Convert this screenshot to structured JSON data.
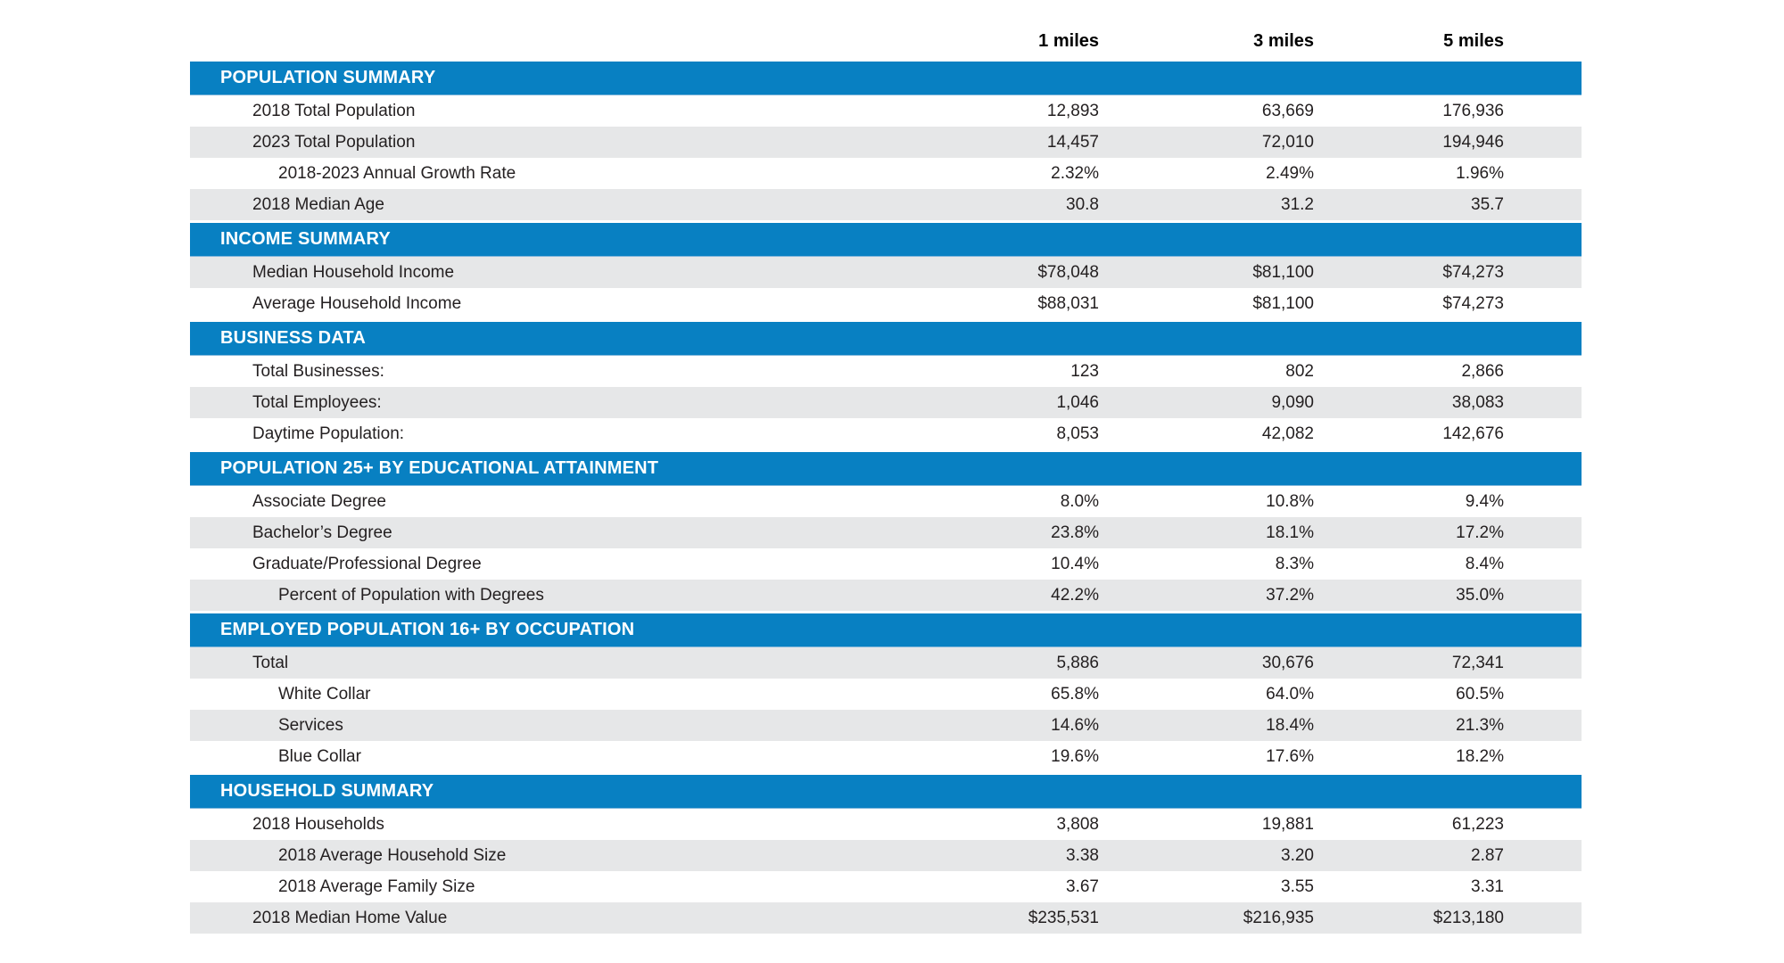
{
  "columns": [
    "1 miles",
    "3 miles",
    "5 miles"
  ],
  "colors": {
    "section_bar_bg": "#0880c2",
    "section_bar_text": "#ffffff",
    "row_alt_bg": "#e6e7e8",
    "body_text": "#231f20"
  },
  "sections": [
    {
      "title": "POPULATION SUMMARY",
      "rows": [
        {
          "label": "2018 Total Population",
          "indent": 1,
          "shaded": false,
          "values": [
            "12,893",
            "63,669",
            "176,936"
          ]
        },
        {
          "label": "2023 Total Population",
          "indent": 1,
          "shaded": true,
          "values": [
            "14,457",
            "72,010",
            "194,946"
          ]
        },
        {
          "label": "2018-2023 Annual Growth Rate",
          "indent": 2,
          "shaded": false,
          "values": [
            "2.32%",
            "2.49%",
            "1.96%"
          ]
        },
        {
          "label": "2018 Median Age",
          "indent": 1,
          "shaded": true,
          "values": [
            "30.8",
            "31.2",
            "35.7"
          ]
        }
      ]
    },
    {
      "title": "INCOME SUMMARY",
      "rows": [
        {
          "label": "Median Household Income",
          "indent": 1,
          "shaded": true,
          "values": [
            "$78,048",
            "$81,100",
            "$74,273"
          ]
        },
        {
          "label": "Average Household Income",
          "indent": 1,
          "shaded": false,
          "values": [
            "$88,031",
            "$81,100",
            "$74,273"
          ]
        }
      ]
    },
    {
      "title": "BUSINESS DATA",
      "rows": [
        {
          "label": "Total Businesses:",
          "indent": 1,
          "shaded": false,
          "values": [
            "123",
            "802",
            "2,866"
          ]
        },
        {
          "label": "Total Employees:",
          "indent": 1,
          "shaded": true,
          "values": [
            "1,046",
            "9,090",
            "38,083"
          ]
        },
        {
          "label": "Daytime Population:",
          "indent": 1,
          "shaded": false,
          "values": [
            "8,053",
            "42,082",
            "142,676"
          ]
        }
      ]
    },
    {
      "title": "POPULATION 25+ BY EDUCATIONAL ATTAINMENT",
      "rows": [
        {
          "label": "Associate Degree",
          "indent": 1,
          "shaded": false,
          "values": [
            "8.0%",
            "10.8%",
            "9.4%"
          ]
        },
        {
          "label": "Bachelor’s Degree",
          "indent": 1,
          "shaded": true,
          "values": [
            "23.8%",
            "18.1%",
            "17.2%"
          ]
        },
        {
          "label": "Graduate/Professional Degree",
          "indent": 1,
          "shaded": false,
          "values": [
            "10.4%",
            "8.3%",
            "8.4%"
          ]
        },
        {
          "label": "Percent of Population with Degrees",
          "indent": 2,
          "shaded": true,
          "values": [
            "42.2%",
            "37.2%",
            "35.0%"
          ]
        }
      ]
    },
    {
      "title": "EMPLOYED POPULATION 16+ BY OCCUPATION",
      "rows": [
        {
          "label": "Total",
          "indent": 1,
          "shaded": true,
          "values": [
            "5,886",
            "30,676",
            "72,341"
          ]
        },
        {
          "label": "White Collar",
          "indent": 2,
          "shaded": false,
          "values": [
            "65.8%",
            "64.0%",
            "60.5%"
          ]
        },
        {
          "label": "Services",
          "indent": 2,
          "shaded": true,
          "values": [
            "14.6%",
            "18.4%",
            "21.3%"
          ]
        },
        {
          "label": "Blue Collar",
          "indent": 2,
          "shaded": false,
          "values": [
            "19.6%",
            "17.6%",
            "18.2%"
          ]
        }
      ]
    },
    {
      "title": "HOUSEHOLD SUMMARY",
      "rows": [
        {
          "label": "2018 Households",
          "indent": 1,
          "shaded": false,
          "values": [
            "3,808",
            "19,881",
            "61,223"
          ]
        },
        {
          "label": "2018 Average Household Size",
          "indent": 2,
          "shaded": true,
          "values": [
            "3.38",
            "3.20",
            "2.87"
          ]
        },
        {
          "label": "2018 Average Family Size",
          "indent": 2,
          "shaded": false,
          "values": [
            "3.67",
            "3.55",
            "3.31"
          ]
        },
        {
          "label": "2018 Median Home Value",
          "indent": 1,
          "shaded": true,
          "values": [
            "$235,531",
            "$216,935",
            "$213,180"
          ]
        }
      ]
    }
  ]
}
